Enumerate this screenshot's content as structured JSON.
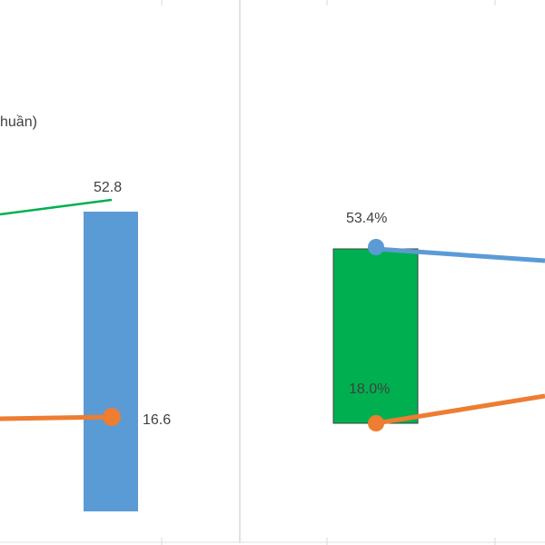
{
  "chart_data": [
    {
      "type": "bar",
      "title": "",
      "legend_fragment": "huần)",
      "series": [
        {
          "name": "",
          "kind": "bar",
          "color": "#5b9bd5",
          "values": [
            52.8
          ]
        },
        {
          "name": "",
          "kind": "line",
          "color": "#00b050",
          "values": [
            52.8
          ]
        },
        {
          "name": "",
          "kind": "line",
          "color": "#ed7d31",
          "values": [
            16.6
          ]
        }
      ],
      "data_labels": [
        "52.8",
        "16.6"
      ],
      "grid": false
    },
    {
      "type": "bar",
      "title": "",
      "series": [
        {
          "name": "",
          "kind": "bar",
          "color": "#00b050",
          "values": [
            53.4
          ]
        },
        {
          "name": "",
          "kind": "line",
          "color": "#5b9bd5",
          "values": [
            53.4
          ]
        },
        {
          "name": "",
          "kind": "line",
          "color": "#ed7d31",
          "values": [
            18.0
          ]
        }
      ],
      "data_labels": [
        "53.4%",
        "18.0%"
      ],
      "grid": false
    }
  ]
}
